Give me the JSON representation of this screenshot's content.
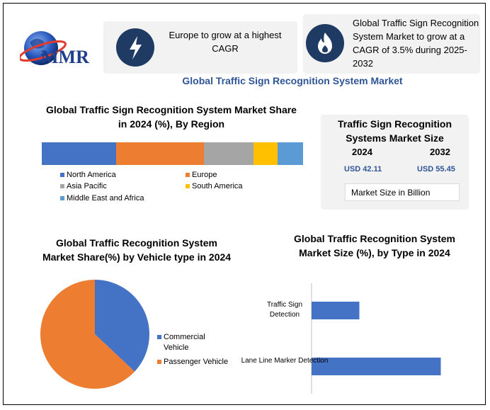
{
  "brand": {
    "logo_text": "MMR"
  },
  "highlights": [
    {
      "text": "Europe to grow at a highest CAGR",
      "icon": "lightning-icon"
    },
    {
      "text": "Global Traffic Sign Recognition System Market to grow at a CAGR of 3.5% during 2025-2032",
      "icon": "flame-icon"
    }
  ],
  "main_title": "Global Traffic Sign Recognition System Market",
  "market_size": {
    "title": "Traffic Sign Recognition Systems Market Size",
    "year_start": "2024",
    "year_end": "2032",
    "value_start": "USD 42.11",
    "value_end": "USD 55.45",
    "unit_label": "Market Size in Billion"
  },
  "colors": {
    "blue": "#4472c4",
    "orange": "#ed7d31",
    "gray": "#a5a5a5",
    "yellow": "#ffc000",
    "light_blue": "#5b9bd5",
    "title_blue": "#2f5597",
    "icon_navy": "#1f3a63"
  },
  "chart_data": [
    {
      "type": "bar",
      "orientation": "horizontal-stacked",
      "title": "Global Traffic Sign Recognition System Market Share in 2024 (%), By Region",
      "series": [
        {
          "name": "North America",
          "value": 28.5,
          "color": "#4472c4"
        },
        {
          "name": "Europe",
          "value": 33.5,
          "color": "#ed7d31"
        },
        {
          "name": "Asia Pacific",
          "value": 19,
          "color": "#a5a5a5"
        },
        {
          "name": "South America",
          "value": 9.3,
          "color": "#ffc000"
        },
        {
          "name": "Middle East and Africa",
          "value": 9.7,
          "color": "#5b9bd5"
        }
      ],
      "legend": "bottom"
    },
    {
      "type": "pie",
      "title": "Global Traffic Recognition System Market Share(%) by Vehicle type in 2024",
      "categories": [
        "Commercial Vehicle",
        "Passenger Vehicle"
      ],
      "values": [
        37,
        63
      ],
      "colors": [
        "#4472c4",
        "#ed7d31"
      ],
      "legend": "right"
    },
    {
      "type": "bar",
      "orientation": "horizontal",
      "title": "Global Traffic Recognition System Market Size (%), by Type in 2024",
      "categories": [
        "Traffic Sign Detection",
        "Lane Line Marker Detection"
      ],
      "values": [
        27,
        73
      ],
      "color": "#4472c4",
      "xlim": [
        0,
        100
      ]
    }
  ]
}
